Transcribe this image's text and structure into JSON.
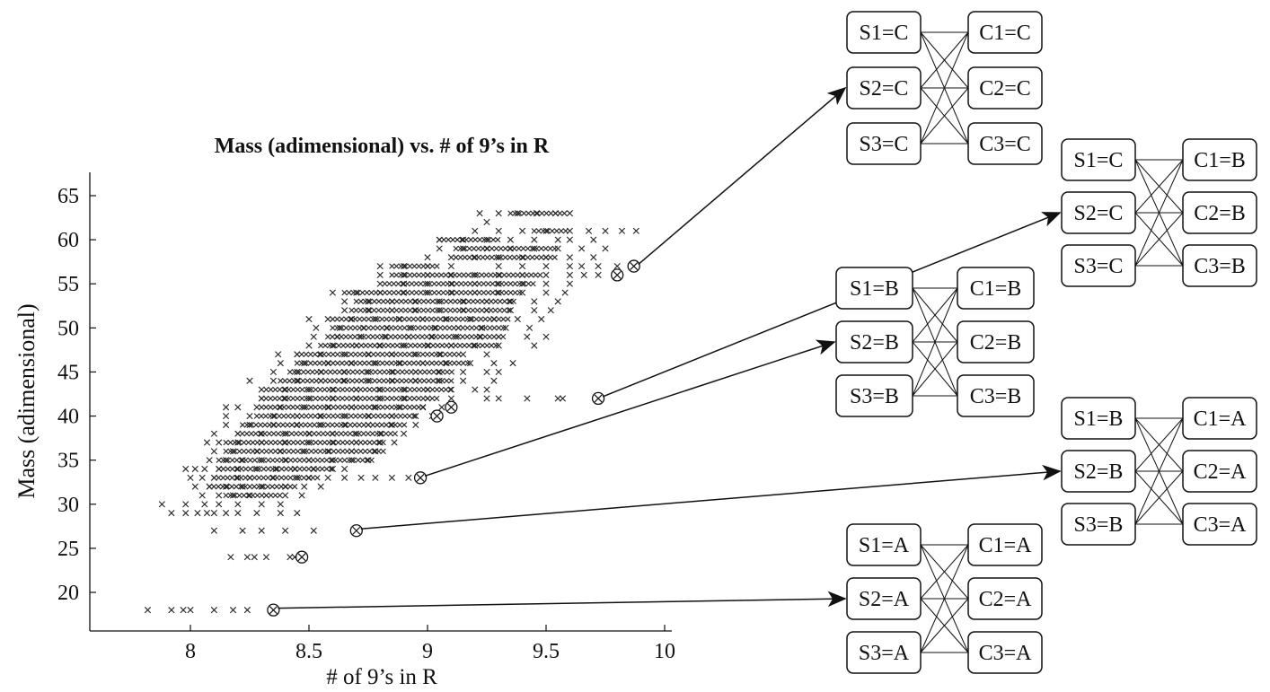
{
  "chart_data": {
    "type": "scatter",
    "title": "Mass (adimensional) vs. # of 9’s in R",
    "xlabel": "# of 9’s in R",
    "ylabel": "Mass (adimensional)",
    "xlim": [
      7.65,
      10.05
    ],
    "ylim": [
      15.5,
      67.5
    ],
    "xticks": [
      "8",
      "8.5",
      "9",
      "9.5",
      "10"
    ],
    "yticks": [
      "20",
      "25",
      "30",
      "35",
      "40",
      "45",
      "50",
      "55",
      "60",
      "65"
    ],
    "grid": false,
    "legend": "none",
    "marker": "x",
    "point_rows": [
      {
        "y": 18,
        "x": [
          7.82,
          7.92,
          7.97,
          8.0,
          8.1,
          8.18,
          8.24
        ]
      },
      {
        "y": 24,
        "x": [
          8.17,
          8.24,
          8.27,
          8.32,
          8.42,
          8.44
        ]
      },
      {
        "y": 27,
        "x": [
          8.1,
          8.22,
          8.3,
          8.4,
          8.52
        ]
      },
      {
        "y": 29,
        "x": [
          7.92,
          7.98,
          8.03,
          8.07,
          8.1,
          8.15,
          8.2,
          8.28,
          8.38,
          8.45
        ]
      },
      {
        "y": 30,
        "x": [
          7.88,
          7.98,
          8.06,
          8.12,
          8.2,
          8.3,
          8.38
        ]
      },
      {
        "y": 31,
        "x": [
          8.05,
          8.12,
          8.18,
          8.25,
          8.32,
          8.4,
          8.47
        ]
      },
      {
        "y": 32,
        "x": [
          8.02,
          8.08,
          8.15,
          8.22,
          8.3,
          8.4,
          8.48,
          8.55
        ]
      },
      {
        "y": 33,
        "x": [
          8.0,
          8.05,
          8.1,
          8.2,
          8.25,
          8.35,
          8.45,
          8.5,
          8.58,
          8.65,
          8.72,
          8.78,
          8.85,
          8.92
        ]
      },
      {
        "y": 34,
        "x": [
          7.98,
          8.02,
          8.06,
          8.12,
          8.2,
          8.28,
          8.36,
          8.44,
          8.52,
          8.6,
          8.65
        ]
      },
      {
        "y": 35,
        "x": [
          8.08,
          8.15,
          8.22,
          8.3,
          8.4,
          8.5,
          8.6,
          8.68,
          8.75
        ]
      },
      {
        "y": 36,
        "x": [
          8.1,
          8.18,
          8.28,
          8.38,
          8.48,
          8.58,
          8.68,
          8.78
        ]
      },
      {
        "y": 37,
        "x": [
          8.07,
          8.12,
          8.2,
          8.3,
          8.4,
          8.5,
          8.6,
          8.7,
          8.8,
          8.86
        ]
      },
      {
        "y": 38,
        "x": [
          8.1,
          8.2,
          8.3,
          8.4,
          8.5,
          8.6,
          8.7,
          8.8,
          8.9
        ]
      },
      {
        "y": 39,
        "x": [
          8.15,
          8.25,
          8.35,
          8.45,
          8.55,
          8.65,
          8.75,
          8.85,
          8.95
        ]
      },
      {
        "y": 40,
        "x": [
          8.15,
          8.25,
          8.35,
          8.45,
          8.55,
          8.65,
          8.75,
          8.85,
          8.95,
          9.02
        ]
      },
      {
        "y": 41,
        "x": [
          8.15,
          8.2,
          8.28,
          8.38,
          8.48,
          8.58,
          8.68,
          8.78,
          8.88,
          8.98,
          9.06
        ]
      },
      {
        "y": 42,
        "x": [
          8.3,
          8.4,
          8.5,
          8.6,
          8.7,
          8.8,
          8.9,
          9.0,
          9.1,
          9.25,
          9.3,
          9.42,
          9.55,
          9.57
        ]
      },
      {
        "y": 43,
        "x": [
          8.3,
          8.4,
          8.5,
          8.6,
          8.7,
          8.8,
          8.9,
          9.0,
          9.1,
          9.2,
          9.25
        ]
      },
      {
        "y": 44,
        "x": [
          8.25,
          8.35,
          8.45,
          8.55,
          8.65,
          8.75,
          8.85,
          8.95,
          9.05,
          9.15,
          9.28
        ]
      },
      {
        "y": 45,
        "x": [
          8.35,
          8.45,
          8.55,
          8.65,
          8.75,
          8.85,
          8.95,
          9.05,
          9.15,
          9.25,
          9.3
        ]
      },
      {
        "y": 46,
        "x": [
          8.38,
          8.48,
          8.58,
          8.68,
          8.78,
          8.88,
          8.98,
          9.08,
          9.18,
          9.28,
          9.36
        ]
      },
      {
        "y": 47,
        "x": [
          8.37,
          8.45,
          8.55,
          8.65,
          8.75,
          8.85,
          8.95,
          9.05,
          9.15,
          9.25
        ]
      },
      {
        "y": 48,
        "x": [
          8.5,
          8.6,
          8.7,
          8.8,
          8.9,
          9.0,
          9.1,
          9.2,
          9.3,
          9.45
        ]
      },
      {
        "y": 49,
        "x": [
          8.52,
          8.62,
          8.72,
          8.82,
          8.92,
          9.02,
          9.12,
          9.22,
          9.3,
          9.42,
          9.5
        ]
      },
      {
        "y": 50,
        "x": [
          8.53,
          8.63,
          8.73,
          8.83,
          8.93,
          9.03,
          9.13,
          9.23,
          9.33,
          9.43
        ]
      },
      {
        "y": 51,
        "x": [
          8.5,
          8.58,
          8.68,
          8.78,
          8.88,
          8.98,
          9.08,
          9.18,
          9.28,
          9.38,
          9.48
        ]
      },
      {
        "y": 52,
        "x": [
          8.65,
          8.75,
          8.85,
          8.95,
          9.05,
          9.15,
          9.25,
          9.35,
          9.45,
          9.52
        ]
      },
      {
        "y": 53,
        "x": [
          8.65,
          8.75,
          8.85,
          8.95,
          9.05,
          9.15,
          9.25,
          9.35,
          9.45,
          9.55
        ]
      },
      {
        "y": 54,
        "x": [
          8.6,
          8.7,
          8.8,
          8.9,
          9.0,
          9.1,
          9.2,
          9.3,
          9.4,
          9.5,
          9.58
        ]
      },
      {
        "y": 55,
        "x": [
          8.8,
          8.9,
          9.0,
          9.1,
          9.2,
          9.3,
          9.4,
          9.5,
          9.6
        ]
      },
      {
        "y": 56,
        "x": [
          8.8,
          8.9,
          9.0,
          9.1,
          9.2,
          9.3,
          9.4,
          9.5,
          9.6,
          9.66,
          9.72
        ]
      },
      {
        "y": 57,
        "x": [
          8.8,
          8.9,
          9.0,
          9.1,
          9.3,
          9.4,
          9.5,
          9.6,
          9.65,
          9.72,
          9.8
        ]
      },
      {
        "y": 58,
        "x": [
          9.0,
          9.1,
          9.2,
          9.3,
          9.4,
          9.5,
          9.6,
          9.7
        ]
      },
      {
        "y": 59,
        "x": [
          9.05,
          9.15,
          9.25,
          9.35,
          9.45,
          9.55,
          9.65,
          9.75
        ]
      },
      {
        "y": 60,
        "x": [
          9.05,
          9.15,
          9.25,
          9.35,
          9.45,
          9.55,
          9.6,
          9.7
        ]
      },
      {
        "y": 61,
        "x": [
          9.2,
          9.3,
          9.4,
          9.5,
          9.6,
          9.68,
          9.75,
          9.82,
          9.88
        ]
      },
      {
        "y": 62,
        "x": [
          9.25
        ]
      },
      {
        "y": 63,
        "x": [
          9.22,
          9.3,
          9.38,
          9.46,
          9.54,
          9.6
        ]
      }
    ],
    "dense_segments": [
      {
        "y": 31,
        "x0": 8.15,
        "x1": 8.38
      },
      {
        "y": 32,
        "x0": 8.08,
        "x1": 8.45
      },
      {
        "y": 33,
        "x0": 8.1,
        "x1": 8.55
      },
      {
        "y": 34,
        "x0": 8.12,
        "x1": 8.6
      },
      {
        "y": 35,
        "x0": 8.12,
        "x1": 8.78
      },
      {
        "y": 36,
        "x0": 8.15,
        "x1": 8.82
      },
      {
        "y": 37,
        "x0": 8.15,
        "x1": 8.82
      },
      {
        "y": 38,
        "x0": 8.2,
        "x1": 8.88
      },
      {
        "y": 39,
        "x0": 8.22,
        "x1": 8.92
      },
      {
        "y": 40,
        "x0": 8.28,
        "x1": 8.95
      },
      {
        "y": 41,
        "x0": 8.3,
        "x1": 9.0
      },
      {
        "y": 42,
        "x0": 8.3,
        "x1": 9.05
      },
      {
        "y": 43,
        "x0": 8.32,
        "x1": 9.1
      },
      {
        "y": 44,
        "x0": 8.38,
        "x1": 9.1
      },
      {
        "y": 45,
        "x0": 8.42,
        "x1": 9.12
      },
      {
        "y": 46,
        "x0": 8.45,
        "x1": 9.18
      },
      {
        "y": 47,
        "x0": 8.45,
        "x1": 9.15
      },
      {
        "y": 48,
        "x0": 8.55,
        "x1": 9.3
      },
      {
        "y": 49,
        "x0": 8.58,
        "x1": 9.32
      },
      {
        "y": 50,
        "x0": 8.6,
        "x1": 9.32
      },
      {
        "y": 51,
        "x0": 8.6,
        "x1": 9.35
      },
      {
        "y": 52,
        "x0": 8.68,
        "x1": 9.35
      },
      {
        "y": 53,
        "x0": 8.7,
        "x1": 9.38
      },
      {
        "y": 54,
        "x0": 8.65,
        "x1": 9.4
      },
      {
        "y": 55,
        "x0": 8.82,
        "x1": 9.45
      },
      {
        "y": 56,
        "x0": 8.85,
        "x1": 9.48
      },
      {
        "y": 57,
        "x0": 8.85,
        "x1": 9.05
      },
      {
        "y": 58,
        "x0": 9.12,
        "x1": 9.55
      },
      {
        "y": 59,
        "x0": 9.12,
        "x1": 9.55
      },
      {
        "y": 60,
        "x0": 9.05,
        "x1": 9.3
      },
      {
        "y": 61,
        "x0": 9.45,
        "x1": 9.6
      },
      {
        "y": 63,
        "x0": 9.35,
        "x1": 9.58
      }
    ],
    "highlighted_points": [
      {
        "x": 8.35,
        "y": 18,
        "network": "A"
      },
      {
        "x": 8.47,
        "y": 24
      },
      {
        "x": 8.7,
        "y": 27,
        "network": "B_C_ABBB"
      },
      {
        "x": 8.97,
        "y": 33,
        "network": "B"
      },
      {
        "x": 9.04,
        "y": 40
      },
      {
        "x": 9.1,
        "y": 41
      },
      {
        "x": 9.72,
        "y": 42,
        "network": "C_B"
      },
      {
        "x": 9.8,
        "y": 56
      },
      {
        "x": 9.87,
        "y": 57,
        "network": "C"
      }
    ]
  },
  "networks": [
    {
      "id": "C",
      "left": [
        "S1=C",
        "S2=C",
        "S3=C"
      ],
      "right": [
        "C1=C",
        "C2=C",
        "C3=C"
      ]
    },
    {
      "id": "C_B",
      "left": [
        "S1=C",
        "S2=C",
        "S3=C"
      ],
      "right": [
        "C1=B",
        "C2=B",
        "C3=B"
      ]
    },
    {
      "id": "B",
      "left": [
        "S1=B",
        "S2=B",
        "S3=B"
      ],
      "right": [
        "C1=B",
        "C2=B",
        "C3=B"
      ]
    },
    {
      "id": "B_C_ABBB",
      "left": [
        "S1=B",
        "S2=B",
        "S3=B"
      ],
      "right": [
        "C1=A",
        "C2=A",
        "C3=A"
      ]
    },
    {
      "id": "A",
      "left": [
        "S1=A",
        "S2=A",
        "S3=A"
      ],
      "right": [
        "C1=A",
        "C2=A",
        "C3=A"
      ]
    }
  ]
}
